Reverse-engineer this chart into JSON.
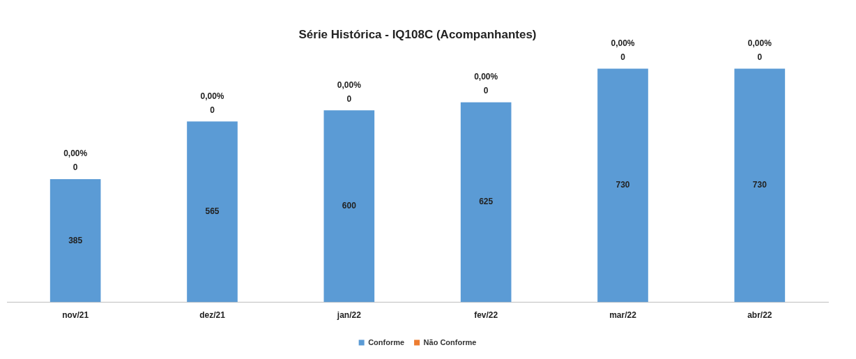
{
  "chart_data": {
    "type": "bar",
    "title": "Série Histórica - IQ108C (Acompanhantes)",
    "categories": [
      "nov/21",
      "dez/21",
      "jan/22",
      "fev/22",
      "mar/22",
      "abr/22"
    ],
    "stacked": true,
    "tick_labels": "x",
    "grid": false,
    "legend": "bottom",
    "series": [
      {
        "name": "Conforme",
        "color": "#5b9bd5",
        "values": [
          385,
          565,
          600,
          625,
          730,
          730
        ],
        "value_labels": [
          "385",
          "565",
          "600",
          "625",
          "730",
          "730"
        ]
      },
      {
        "name": "Não Conforme",
        "color": "#ed7d31",
        "values": [
          0,
          0,
          0,
          0,
          0,
          0
        ],
        "value_labels": [
          "0,00%\n0",
          "0,00%\n0",
          "0,00%\n0",
          "0,00%\n0",
          "0,00%\n0",
          "0,00%\n0"
        ]
      }
    ]
  }
}
